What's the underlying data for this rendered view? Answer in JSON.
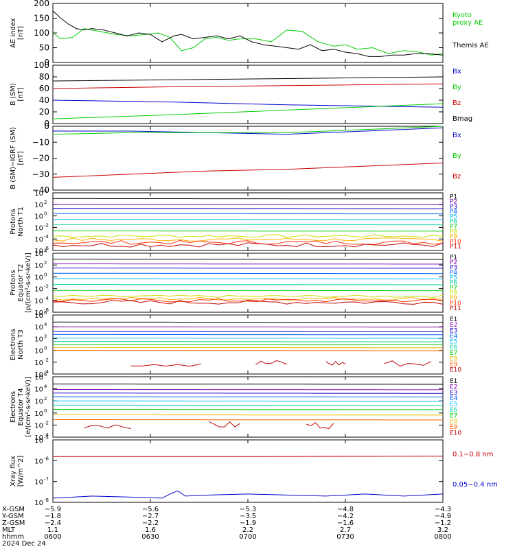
{
  "chart_data": [
    {
      "type": "line",
      "ylabel": "AE index\n[nT]",
      "ylim": [
        0,
        200
      ],
      "yticks": [
        0,
        50,
        100,
        150,
        200
      ],
      "series": [
        {
          "name": "Kyoto\nproxy AE",
          "color": "#00cc00",
          "x": [
            0,
            0.02,
            0.05,
            0.08,
            0.12,
            0.16,
            0.2,
            0.24,
            0.27,
            0.3,
            0.33,
            0.36,
            0.39,
            0.42,
            0.45,
            0.48,
            0.52,
            0.56,
            0.6,
            0.64,
            0.68,
            0.72,
            0.75,
            0.78,
            0.82,
            0.86,
            0.9,
            0.94,
            0.97,
            1.0
          ],
          "y": [
            100,
            80,
            85,
            115,
            105,
            95,
            90,
            95,
            100,
            85,
            40,
            50,
            80,
            85,
            75,
            80,
            80,
            70,
            110,
            105,
            70,
            55,
            60,
            45,
            50,
            30,
            40,
            35,
            25,
            30
          ]
        },
        {
          "name": "Themis AE",
          "color": "#000000",
          "x": [
            0,
            0.02,
            0.04,
            0.06,
            0.08,
            0.1,
            0.13,
            0.16,
            0.19,
            0.22,
            0.25,
            0.28,
            0.31,
            0.33,
            0.36,
            0.39,
            0.42,
            0.45,
            0.48,
            0.51,
            0.54,
            0.57,
            0.6,
            0.63,
            0.66,
            0.69,
            0.72,
            0.75,
            0.78,
            0.81,
            0.84,
            0.87,
            0.9,
            0.93,
            0.96,
            1.0
          ],
          "y": [
            175,
            150,
            130,
            115,
            110,
            115,
            110,
            100,
            90,
            100,
            95,
            70,
            90,
            95,
            80,
            85,
            90,
            80,
            90,
            70,
            60,
            55,
            50,
            45,
            60,
            40,
            45,
            35,
            30,
            20,
            20,
            25,
            25,
            30,
            30,
            25
          ]
        }
      ]
    },
    {
      "type": "line",
      "ylabel": "B (SM)\n[nT]",
      "ylim": [
        0,
        100
      ],
      "yticks": [
        0,
        20,
        40,
        60,
        80,
        100
      ],
      "series": [
        {
          "name": "Bx",
          "color": "#0000cc",
          "x": [
            0,
            0.3,
            0.6,
            1.0
          ],
          "y": [
            40,
            37,
            32,
            28
          ]
        },
        {
          "name": "By",
          "color": "#00cc00",
          "x": [
            0,
            0.3,
            0.6,
            1.0
          ],
          "y": [
            8,
            15,
            23,
            34
          ]
        },
        {
          "name": "Bz",
          "color": "#cc0000",
          "x": [
            0,
            0.3,
            0.6,
            1.0
          ],
          "y": [
            60,
            63,
            65,
            68
          ]
        },
        {
          "name": "Bmag",
          "color": "#000000",
          "x": [
            0,
            0.3,
            0.6,
            1.0
          ],
          "y": [
            73,
            75,
            77,
            80
          ]
        }
      ]
    },
    {
      "type": "line",
      "ylabel": "B (SM)−IGRF (SM)\n[nT]",
      "ylim": [
        -40,
        0
      ],
      "yticks": [
        -40,
        -30,
        -20,
        -10,
        0
      ],
      "series": [
        {
          "name": "Bx",
          "color": "#0000cc",
          "x": [
            0,
            0.2,
            0.4,
            0.6,
            0.8,
            1.0
          ],
          "y": [
            -3,
            -3,
            -4,
            -5,
            -3,
            -1
          ]
        },
        {
          "name": "By",
          "color": "#00cc00",
          "x": [
            0,
            0.2,
            0.4,
            0.6,
            0.8,
            1.0
          ],
          "y": [
            -5,
            -4,
            -4,
            -4,
            -2,
            0
          ]
        },
        {
          "name": "Bz",
          "color": "#cc0000",
          "x": [
            0,
            0.2,
            0.4,
            0.6,
            0.8,
            1.0
          ],
          "y": [
            -32,
            -30,
            -28,
            -27,
            -25,
            -23
          ]
        }
      ]
    },
    {
      "type": "line",
      "log": true,
      "ylabel": "Protons\nNorth T1",
      "ylim": [
        -6,
        4
      ],
      "yticks": [
        "10^-6",
        "10^-4",
        "10^-2",
        "10^0",
        "10^2",
        "10^4"
      ],
      "legend": [
        "P1",
        "P2",
        "P3",
        "P4",
        "P5",
        "P6",
        "P7",
        "P8",
        "P9",
        "P10",
        "P11"
      ],
      "colors": [
        "#000000",
        "#7f00b0",
        "#1c00c8",
        "#0060ff",
        "#00b8ff",
        "#00d0a0",
        "#00c800",
        "#c8e000",
        "#ffb000",
        "#ff3000",
        "#c00000"
      ],
      "levels": [
        3.0,
        2.0,
        1.3,
        0.4,
        -0.6,
        -1.5,
        -2.6,
        -3.5,
        -4.1,
        -4.6,
        -5.0
      ],
      "jitter": [
        0,
        0,
        0,
        0,
        0,
        0,
        0,
        0.25,
        0.3,
        0.35,
        0.4
      ]
    },
    {
      "type": "line",
      "log": true,
      "ylabel": "Protons\nEquator T2\n[p/(cm²-s-sr-keV)]",
      "ylim": [
        -6,
        4
      ],
      "yticks": [
        "10^-6",
        "10^-4",
        "10^-2",
        "10^0",
        "10^2",
        "10^4"
      ],
      "legend": [
        "P1",
        "P2",
        "P3",
        "P4",
        "P5",
        "P6",
        "P7",
        "P8",
        "P9",
        "P10",
        "P11"
      ],
      "colors": [
        "#000000",
        "#7f00b0",
        "#1c00c8",
        "#0060ff",
        "#00b8ff",
        "#00d0a0",
        "#00c800",
        "#c8e000",
        "#ffb000",
        "#ff3000",
        "#c00000"
      ],
      "levels": [
        3.0,
        2.2,
        1.5,
        0.6,
        -0.3,
        -1.3,
        -2.3,
        -3.3,
        -3.7,
        -4.0,
        -4.3
      ],
      "jitter": [
        0,
        0,
        0,
        0,
        0,
        0,
        0,
        0.2,
        0.25,
        0.3,
        0.35
      ]
    },
    {
      "type": "line",
      "log": true,
      "ylabel": "Electrons\nNorth T3",
      "ylim": [
        -4,
        6
      ],
      "yticks": [
        "10^-4",
        "10^-2",
        "10^0",
        "10^2",
        "10^4",
        "10^6"
      ],
      "legend": [
        "E1",
        "E2",
        "E3",
        "E4",
        "E5",
        "E6",
        "E7",
        "E8",
        "E9",
        "E10"
      ],
      "colors": [
        "#000000",
        "#7f00b0",
        "#1c00c8",
        "#0060ff",
        "#00b8ff",
        "#00d0a0",
        "#00c800",
        "#e0c000",
        "#ff6000",
        "#c00000"
      ],
      "levels": [
        4.8,
        4.0,
        3.2,
        2.7,
        2.1,
        1.5,
        1.0,
        0.5,
        0.0,
        -2.2
      ],
      "jitter": [
        0,
        0,
        0,
        0,
        0,
        0,
        0,
        0,
        0,
        0.6
      ]
    },
    {
      "type": "line",
      "log": true,
      "ylabel": "Electrons\nEquator T4\n[e/(cm²-s-sr-keV)]",
      "ylim": [
        -4,
        6
      ],
      "yticks": [
        "10^-4",
        "10^-2",
        "10^0",
        "10^2",
        "10^4",
        "10^6"
      ],
      "legend": [
        "E1",
        "E2",
        "E3",
        "E4",
        "E5",
        "E6",
        "E7",
        "E8",
        "E9",
        "E10"
      ],
      "colors": [
        "#000000",
        "#7f00b0",
        "#1c00c8",
        "#0060ff",
        "#00b8ff",
        "#00d0a0",
        "#00c800",
        "#e0c000",
        "#ff6000",
        "#c00000"
      ],
      "levels": [
        4.8,
        3.9,
        3.3,
        2.7,
        2.0,
        1.3,
        0.6,
        -0.3,
        -1.1,
        -2.0
      ],
      "jitter": [
        0,
        0,
        0,
        0,
        0,
        0,
        0,
        0,
        0,
        0.6
      ]
    },
    {
      "type": "line",
      "log": true,
      "ylabel": "Xray flux\n[W/m^2]",
      "ylim": [
        -8,
        -5
      ],
      "yticks": [
        "10^-8",
        "10^-7",
        "10^-6",
        "10^-5"
      ],
      "series": [
        {
          "name": "0.1−0.8 nm",
          "color": "#cc0000",
          "x": [
            0,
            0.5,
            1.0
          ],
          "y": [
            -5.8,
            -5.8,
            -5.78
          ]
        },
        {
          "name": "0.05−0.4 nm",
          "color": "#0000cc",
          "x": [
            0,
            0.1,
            0.2,
            0.28,
            0.3,
            0.32,
            0.34,
            0.4,
            0.5,
            0.6,
            0.7,
            0.8,
            0.9,
            1.0
          ],
          "y": [
            -7.8,
            -7.7,
            -7.75,
            -7.8,
            -7.6,
            -7.45,
            -7.7,
            -7.65,
            -7.6,
            -7.65,
            -7.7,
            -7.6,
            -7.7,
            -7.6
          ]
        }
      ]
    }
  ],
  "x_axis": {
    "rows": [
      {
        "label": "X-GSM",
        "values": [
          "−5.9",
          "−5.6",
          "−5.3",
          "−4.8",
          "−4.3"
        ]
      },
      {
        "label": "Y-GSM",
        "values": [
          "−1.8",
          "−2.7",
          "−3.5",
          "−4.2",
          "−4.9"
        ]
      },
      {
        "label": "Z-GSM",
        "values": [
          "−2.4",
          "−2.2",
          "−1.9",
          "−1.6",
          "−1.2"
        ]
      },
      {
        "label": "MLT",
        "values": [
          "1.1",
          "1.6",
          "2.2",
          "2.7",
          "3.2"
        ]
      },
      {
        "label": "hhmm",
        "values": [
          "0600",
          "0630",
          "0700",
          "0730",
          "0800"
        ]
      }
    ],
    "date": "2024 Dec 24"
  }
}
